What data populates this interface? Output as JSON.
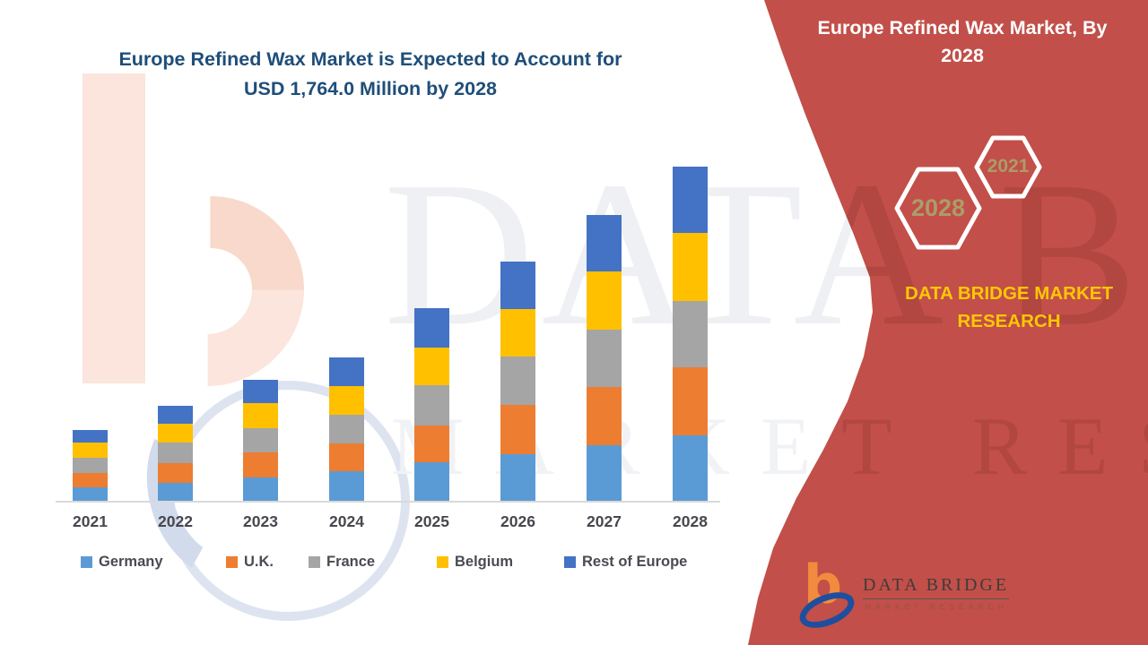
{
  "title": {
    "line1": "Europe Refined Wax Market is Expected to Account for",
    "line2": "USD 1,764.0 Million by 2028"
  },
  "watermark": {
    "line1": "DATA BRIDGE",
    "line2": "MARKET RESEARCH"
  },
  "panel": {
    "title": "Europe Refined Wax Market, By 2028",
    "hexagons": [
      {
        "label": "2028"
      },
      {
        "label": "2021"
      }
    ],
    "brand_text": "DATA BRIDGE MARKET RESEARCH",
    "logo": {
      "name": "DATA BRIDGE",
      "subtitle": "MARKET RESEARCH"
    },
    "bg_color": "#c24f49",
    "gold_color": "#fdc705",
    "hex_label_color": "#ab9d68"
  },
  "chart_data": {
    "type": "bar",
    "stacked": true,
    "title": "Europe Refined Wax Market is Expected to Account for USD 1,764.0 Million by 2028",
    "unit": "USD Million",
    "xlabel": "",
    "ylabel": "",
    "grid": false,
    "legend_position": "bottom",
    "values_estimated_from_bar_heights": true,
    "stated_total_2028": 1764.0,
    "categories": [
      "2021",
      "2022",
      "2023",
      "2024",
      "2025",
      "2026",
      "2027",
      "2028"
    ],
    "series": [
      {
        "name": "Germany",
        "color": "#5b9bd5",
        "values": [
          71,
          95,
          123,
          156,
          203,
          246,
          293,
          345
        ]
      },
      {
        "name": "U.K.",
        "color": "#ed7d31",
        "values": [
          76,
          104,
          132,
          147,
          194,
          260,
          307,
          359
        ]
      },
      {
        "name": "France",
        "color": "#a5a5a5",
        "values": [
          80,
          109,
          128,
          151,
          213,
          255,
          303,
          350
        ]
      },
      {
        "name": "Belgium",
        "color": "#ffc000",
        "values": [
          80,
          99,
          132,
          151,
          199,
          251,
          307,
          359
        ]
      },
      {
        "name": "Rest of Europe",
        "color": "#4472c4",
        "values": [
          66,
          95,
          123,
          151,
          208,
          251,
          298,
          350
        ]
      }
    ],
    "totals_estimated": [
      373,
      502,
      638,
      756,
      1017,
      1263,
      1508,
      1763
    ]
  }
}
